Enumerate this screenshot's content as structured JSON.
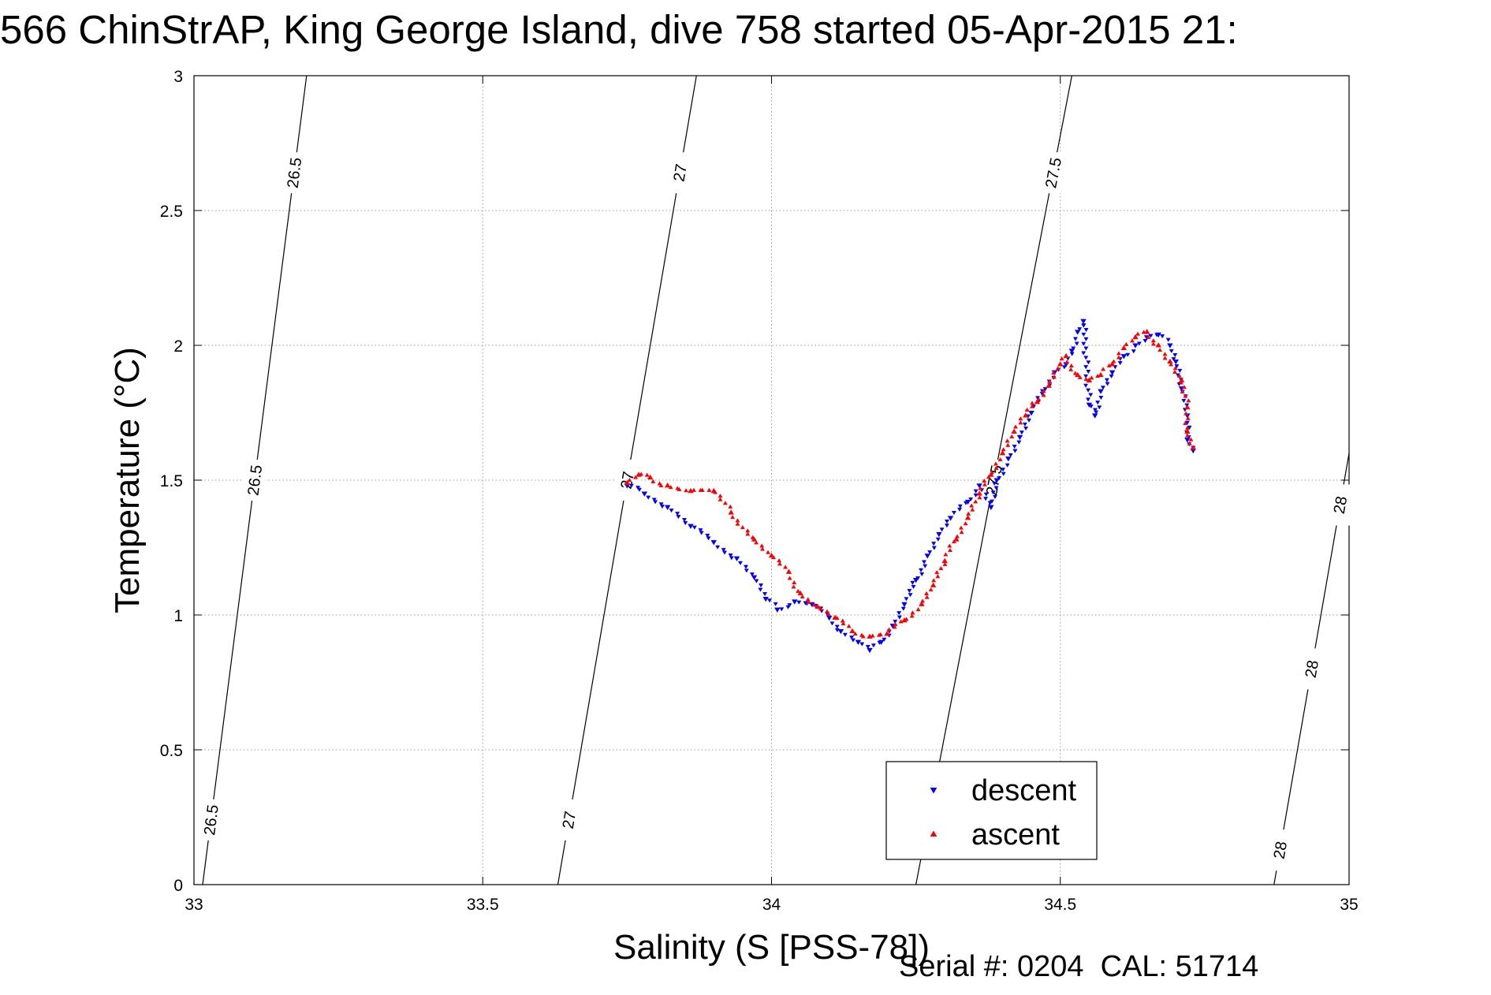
{
  "title": "566 ChinStrAP, King George Island, dive 758 started 05-Apr-2015 21:",
  "footer": "Serial #: 0204  CAL: 51714",
  "chart_data": {
    "type": "scatter",
    "xlabel": "Salinity (S [PSS-78])",
    "ylabel": "Temperature (°C)",
    "xlim": [
      33,
      35
    ],
    "ylim": [
      0,
      3
    ],
    "x_ticks": [
      "33",
      "33.5",
      "34",
      "34.5",
      "35"
    ],
    "y_ticks": [
      "0",
      "0.5",
      "1",
      "1.5",
      "2",
      "2.5",
      "3"
    ],
    "grid": true,
    "legend_position": "bottom-right",
    "series": [
      {
        "name": "descent",
        "color": "#0000ff",
        "marker": "triangle-down",
        "points": [
          [
            33.75,
            1.48
          ],
          [
            33.78,
            1.45
          ],
          [
            33.82,
            1.4
          ],
          [
            33.86,
            1.33
          ],
          [
            33.9,
            1.27
          ],
          [
            33.94,
            1.21
          ],
          [
            33.97,
            1.14
          ],
          [
            33.99,
            1.06
          ],
          [
            34.01,
            1.02
          ],
          [
            34.04,
            1.05
          ],
          [
            34.07,
            1.04
          ],
          [
            34.1,
            0.99
          ],
          [
            34.12,
            0.94
          ],
          [
            34.15,
            0.9
          ],
          [
            34.17,
            0.87
          ],
          [
            34.19,
            0.9
          ],
          [
            34.21,
            0.96
          ],
          [
            34.23,
            1.04
          ],
          [
            34.25,
            1.13
          ],
          [
            34.27,
            1.22
          ],
          [
            34.29,
            1.3
          ],
          [
            34.31,
            1.36
          ],
          [
            34.34,
            1.42
          ],
          [
            34.36,
            1.48
          ],
          [
            34.38,
            1.4
          ],
          [
            34.39,
            1.5
          ],
          [
            34.41,
            1.58
          ],
          [
            34.43,
            1.66
          ],
          [
            34.45,
            1.75
          ],
          [
            34.47,
            1.83
          ],
          [
            34.49,
            1.9
          ],
          [
            34.51,
            1.93
          ],
          [
            34.52,
            1.98
          ],
          [
            34.53,
            2.05
          ],
          [
            34.54,
            2.09
          ],
          [
            34.55,
            1.78
          ],
          [
            34.56,
            1.74
          ],
          [
            34.57,
            1.83
          ],
          [
            34.59,
            1.9
          ],
          [
            34.61,
            1.96
          ],
          [
            34.63,
            2.0
          ],
          [
            34.65,
            2.03
          ],
          [
            34.67,
            2.04
          ],
          [
            34.69,
            2.0
          ],
          [
            34.7,
            1.94
          ],
          [
            34.71,
            1.84
          ],
          [
            34.72,
            1.74
          ],
          [
            34.72,
            1.65
          ],
          [
            34.73,
            1.61
          ]
        ]
      },
      {
        "name": "ascent",
        "color": "#ff0000",
        "marker": "triangle-up",
        "points": [
          [
            33.75,
            1.49
          ],
          [
            33.77,
            1.52
          ],
          [
            33.79,
            1.51
          ],
          [
            33.82,
            1.48
          ],
          [
            33.86,
            1.46
          ],
          [
            33.9,
            1.46
          ],
          [
            33.93,
            1.38
          ],
          [
            33.97,
            1.28
          ],
          [
            34.0,
            1.22
          ],
          [
            34.03,
            1.16
          ],
          [
            34.05,
            1.08
          ],
          [
            34.08,
            1.03
          ],
          [
            34.11,
            0.99
          ],
          [
            34.14,
            0.94
          ],
          [
            34.17,
            0.92
          ],
          [
            34.2,
            0.93
          ],
          [
            34.23,
            0.98
          ],
          [
            34.26,
            1.04
          ],
          [
            34.28,
            1.11
          ],
          [
            34.3,
            1.2
          ],
          [
            34.32,
            1.28
          ],
          [
            34.34,
            1.36
          ],
          [
            34.36,
            1.45
          ],
          [
            34.38,
            1.52
          ],
          [
            34.4,
            1.6
          ],
          [
            34.42,
            1.68
          ],
          [
            34.44,
            1.74
          ],
          [
            34.46,
            1.79
          ],
          [
            34.48,
            1.85
          ],
          [
            34.5,
            1.93
          ],
          [
            34.51,
            1.96
          ],
          [
            34.53,
            1.89
          ],
          [
            34.55,
            1.87
          ],
          [
            34.57,
            1.89
          ],
          [
            34.59,
            1.93
          ],
          [
            34.61,
            1.99
          ],
          [
            34.63,
            2.03
          ],
          [
            34.65,
            2.05
          ],
          [
            34.67,
            2.0
          ],
          [
            34.69,
            1.94
          ],
          [
            34.71,
            1.87
          ],
          [
            34.72,
            1.77
          ],
          [
            34.72,
            1.68
          ],
          [
            34.73,
            1.62
          ]
        ]
      }
    ],
    "contours": [
      {
        "label": "26.5",
        "line": [
          [
            33.015,
            0
          ],
          [
            33.195,
            3
          ]
        ]
      },
      {
        "label": "27",
        "line": [
          [
            33.63,
            0
          ],
          [
            33.87,
            3
          ]
        ]
      },
      {
        "label": "27.5",
        "line": [
          [
            34.25,
            0
          ],
          [
            34.52,
            3
          ]
        ]
      },
      {
        "label": "28",
        "line": [
          [
            34.87,
            0
          ],
          [
            35.0,
            1.6
          ]
        ]
      }
    ]
  }
}
